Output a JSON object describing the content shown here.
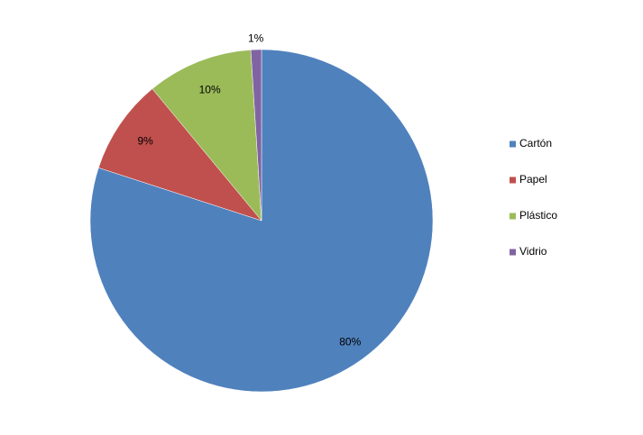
{
  "chart_data": {
    "type": "pie",
    "categories": [
      "Cartón",
      "Papel",
      "Plástico",
      "Vidrio"
    ],
    "values": [
      80,
      9,
      10,
      1
    ],
    "value_labels": [
      "80%",
      "9%",
      "10%",
      "1%"
    ],
    "colors": [
      "#4f81bd",
      "#c0504d",
      "#9bbb59",
      "#8064a2"
    ],
    "legend": "right"
  }
}
